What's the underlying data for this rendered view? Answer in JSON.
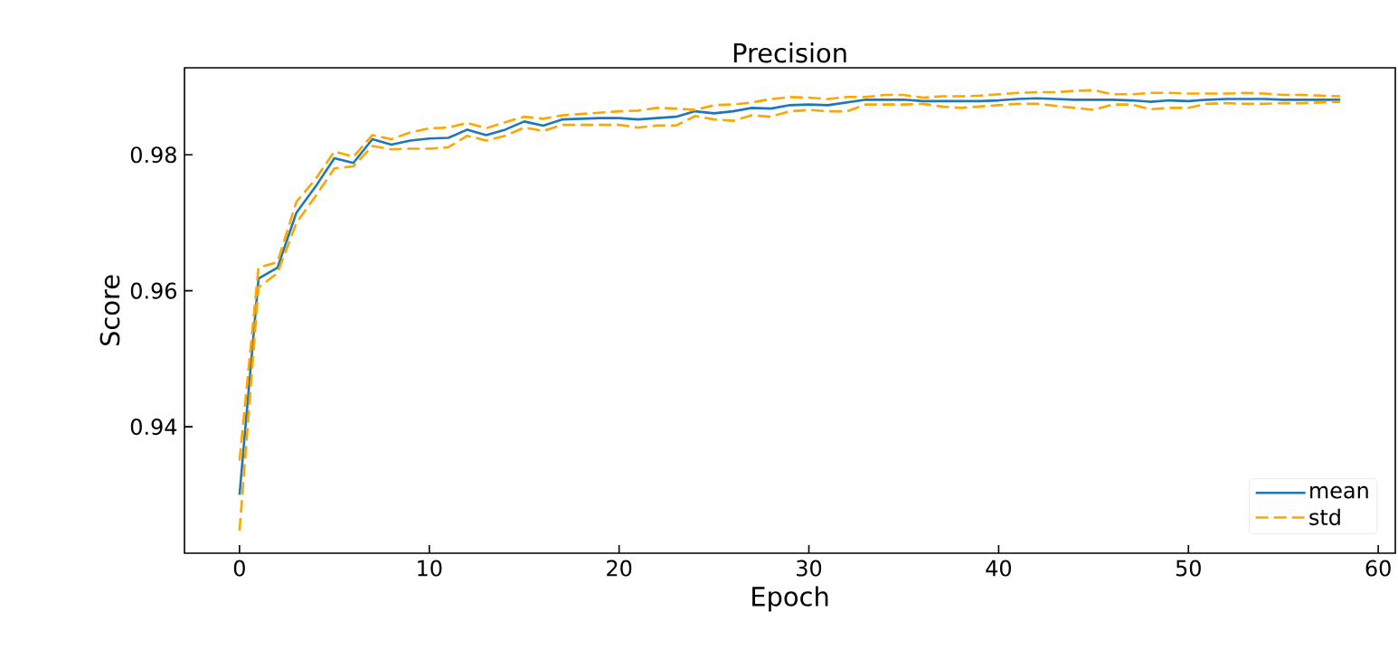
{
  "chart_data": {
    "type": "line",
    "title": "Precision",
    "xlabel": "Epoch",
    "ylabel": "Score",
    "x": [
      0,
      1,
      2,
      3,
      4,
      5,
      6,
      7,
      8,
      9,
      10,
      11,
      12,
      13,
      14,
      15,
      16,
      17,
      18,
      19,
      20,
      21,
      22,
      23,
      24,
      25,
      26,
      27,
      28,
      29,
      30,
      31,
      32,
      33,
      34,
      35,
      36,
      37,
      38,
      39,
      40,
      41,
      42,
      43,
      44,
      45,
      46,
      47,
      48,
      49,
      50,
      51,
      52,
      53,
      54,
      55,
      56,
      57,
      58
    ],
    "series": [
      {
        "name": "mean",
        "color": "#1f77b4",
        "line_style": "solid",
        "values": [
          0.93,
          0.9618,
          0.9634,
          0.9715,
          0.9753,
          0.9795,
          0.9788,
          0.9823,
          0.9815,
          0.9821,
          0.9824,
          0.9825,
          0.9837,
          0.9829,
          0.9837,
          0.9849,
          0.9843,
          0.9852,
          0.9853,
          0.9854,
          0.9854,
          0.9852,
          0.9854,
          0.9856,
          0.9864,
          0.9861,
          0.9864,
          0.9869,
          0.9868,
          0.9873,
          0.9874,
          0.9873,
          0.9877,
          0.9881,
          0.9881,
          0.9881,
          0.9879,
          0.9879,
          0.9879,
          0.9879,
          0.988,
          0.9882,
          0.9883,
          0.9882,
          0.9881,
          0.9881,
          0.9881,
          0.988,
          0.9878,
          0.988,
          0.9879,
          0.9881,
          0.9882,
          0.9882,
          0.9882,
          0.9881,
          0.9881,
          0.9881,
          0.9881
        ]
      },
      {
        "name": "std",
        "color": "#ffa500",
        "line_style": "dashed",
        "values": [
          0.935,
          0.9634,
          0.9642,
          0.9731,
          0.9764,
          0.9805,
          0.9797,
          0.9829,
          0.9823,
          0.9833,
          0.9839,
          0.984,
          0.9847,
          0.9839,
          0.9848,
          0.9856,
          0.9853,
          0.9858,
          0.986,
          0.9862,
          0.9864,
          0.9865,
          0.9869,
          0.9868,
          0.9866,
          0.9873,
          0.9874,
          0.9877,
          0.9882,
          0.9885,
          0.9884,
          0.9882,
          0.9885,
          0.9885,
          0.9888,
          0.9888,
          0.9884,
          0.9886,
          0.9886,
          0.9887,
          0.9889,
          0.9891,
          0.9892,
          0.9892,
          0.9894,
          0.9895,
          0.9889,
          0.9889,
          0.9891,
          0.9891,
          0.989,
          0.989,
          0.989,
          0.9891,
          0.989,
          0.9888,
          0.9888,
          0.9887,
          0.9886
        ]
      },
      {
        "color": "#ffa500",
        "line_style": "dashed",
        "values": [
          0.9247,
          0.9605,
          0.9626,
          0.97,
          0.9739,
          0.978,
          0.9783,
          0.9813,
          0.9808,
          0.9809,
          0.9809,
          0.9811,
          0.9828,
          0.9821,
          0.9828,
          0.984,
          0.9835,
          0.9844,
          0.9844,
          0.9844,
          0.9844,
          0.984,
          0.9843,
          0.9843,
          0.9857,
          0.9852,
          0.985,
          0.9858,
          0.9856,
          0.9864,
          0.9866,
          0.9864,
          0.9864,
          0.9874,
          0.9874,
          0.9874,
          0.9875,
          0.9871,
          0.9869,
          0.9871,
          0.9873,
          0.9875,
          0.9875,
          0.9872,
          0.9869,
          0.9866,
          0.9874,
          0.9874,
          0.9867,
          0.9869,
          0.9869,
          0.9875,
          0.9876,
          0.9875,
          0.9875,
          0.9876,
          0.9876,
          0.9877,
          0.9878
        ]
      }
    ],
    "xlim": [
      -2.9,
      60.9
    ],
    "ylim": [
      0.9214,
      0.9928
    ],
    "xticks": [
      0,
      10,
      20,
      30,
      40,
      50,
      60
    ],
    "yticks": [
      {
        "value": 0.94,
        "label": "0.94"
      },
      {
        "value": 0.96,
        "label": "0.96"
      },
      {
        "value": 0.98,
        "label": "0.98"
      }
    ],
    "legend": "bottom right",
    "grid": false,
    "marker": "none"
  }
}
